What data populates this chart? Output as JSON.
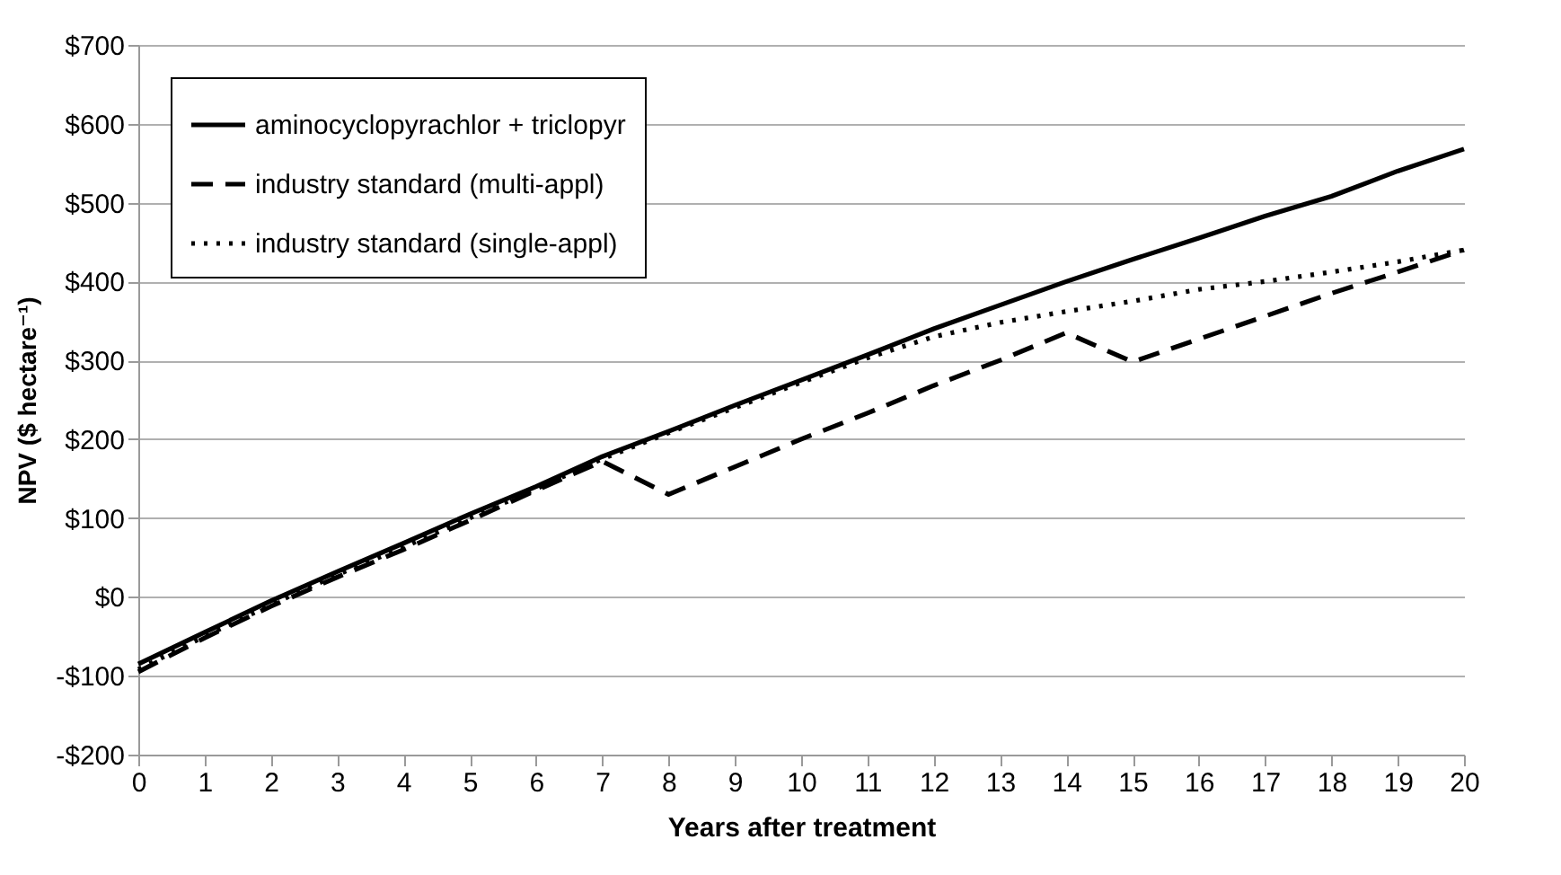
{
  "chart_data": {
    "type": "line",
    "xlabel": "Years after treatment",
    "ylabel": "NPV ($ hectare⁻¹)",
    "x": [
      0,
      1,
      2,
      3,
      4,
      5,
      6,
      7,
      8,
      9,
      10,
      11,
      12,
      13,
      14,
      15,
      16,
      17,
      18,
      19,
      20
    ],
    "xlim": [
      0,
      20
    ],
    "xticks": [
      0,
      1,
      2,
      3,
      4,
      5,
      6,
      7,
      8,
      9,
      10,
      11,
      12,
      13,
      14,
      15,
      16,
      17,
      18,
      19,
      20
    ],
    "ylim": [
      -200,
      700
    ],
    "yticks": [
      {
        "value": -200,
        "label": "-$200"
      },
      {
        "value": -100,
        "label": "-$100"
      },
      {
        "value": 0,
        "label": "$0"
      },
      {
        "value": 100,
        "label": "$100"
      },
      {
        "value": 200,
        "label": "$200"
      },
      {
        "value": 300,
        "label": "$300"
      },
      {
        "value": 400,
        "label": "$400"
      },
      {
        "value": 500,
        "label": "$500"
      },
      {
        "value": 600,
        "label": "$600"
      },
      {
        "value": 700,
        "label": "$700"
      }
    ],
    "grid": "y",
    "legend": "top left",
    "marker": "none",
    "series": [
      {
        "name": "aminocyclopyrachlor + triclopyr",
        "color": "#000000",
        "line_style": "solid",
        "values": [
          -85,
          -45,
          -5,
          32,
          68,
          105,
          140,
          178,
          210,
          243,
          275,
          307,
          340,
          370,
          400,
          428,
          455,
          483,
          508,
          540,
          568
        ]
      },
      {
        "name": "industry standard (multi-appl)",
        "color": "#000000",
        "line_style": "dashed",
        "values": [
          -95,
          -52,
          -12,
          25,
          60,
          97,
          135,
          172,
          130,
          165,
          200,
          233,
          268,
          300,
          335,
          298,
          327,
          356,
          385,
          412,
          440
        ]
      },
      {
        "name": "industry standard (single-appl)",
        "color": "#000000",
        "line_style": "dotted",
        "values": [
          -92,
          -50,
          -10,
          28,
          63,
          100,
          137,
          175,
          208,
          240,
          272,
          303,
          330,
          348,
          362,
          375,
          390,
          400,
          412,
          425,
          440
        ]
      }
    ]
  }
}
